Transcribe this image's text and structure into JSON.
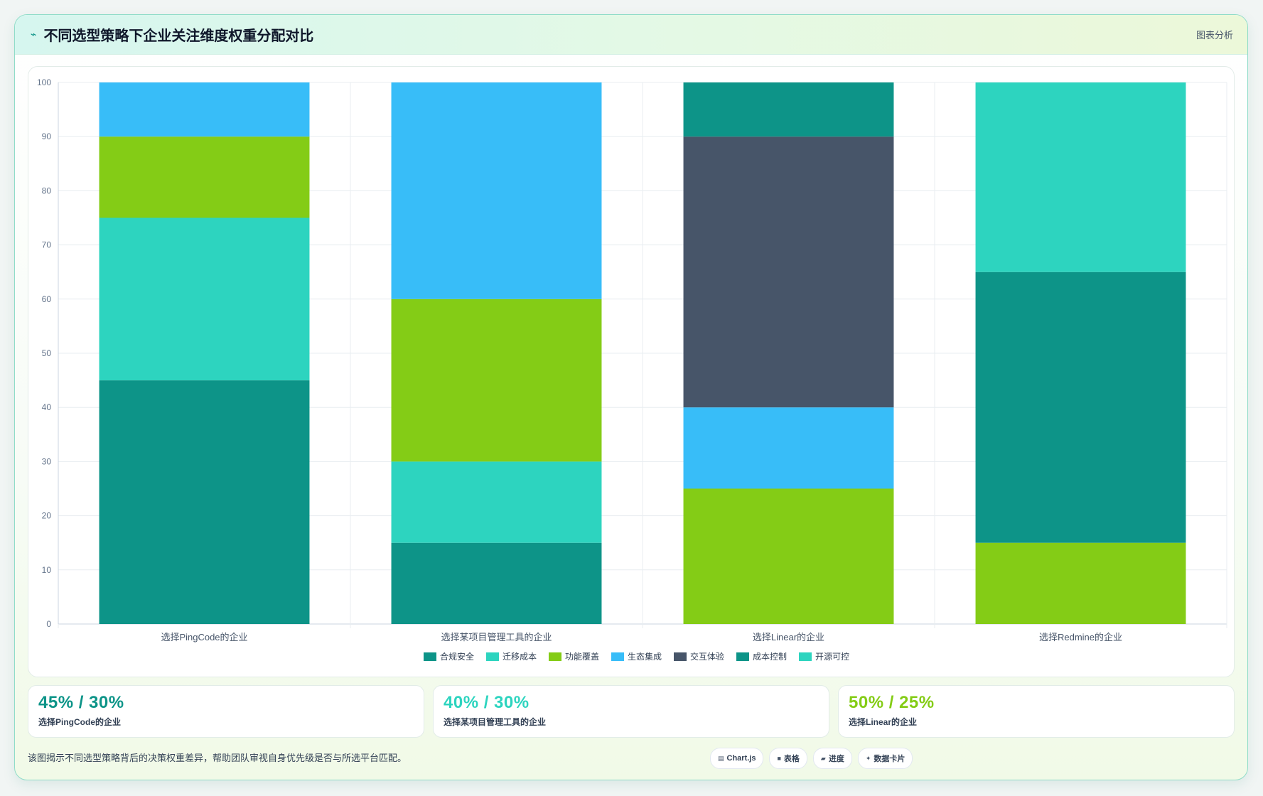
{
  "header": {
    "icon": "pulse-icon",
    "title": "不同选型策略下企业关注维度权重分配对比",
    "action": "图表分析"
  },
  "chart_data": {
    "type": "bar",
    "stacked": true,
    "title": "",
    "xlabel": "",
    "ylabel": "",
    "ylim": [
      0,
      100
    ],
    "yticks": [
      0,
      10,
      20,
      30,
      40,
      50,
      60,
      70,
      80,
      90,
      100
    ],
    "grid": true,
    "legend_position": "bottom",
    "categories": [
      "选择PingCode的企业",
      "选择某项目管理工具的企业",
      "选择Linear的企业",
      "选择Redmine的企业"
    ],
    "series": [
      {
        "name": "合规安全",
        "color": "#0d9488",
        "values": [
          45,
          15,
          0,
          0
        ]
      },
      {
        "name": "迁移成本",
        "color": "#2dd4bf",
        "values": [
          30,
          15,
          0,
          0
        ]
      },
      {
        "name": "功能覆盖",
        "color": "#84cc16",
        "values": [
          15,
          30,
          25,
          15
        ]
      },
      {
        "name": "生态集成",
        "color": "#38bdf8",
        "values": [
          10,
          40,
          15,
          0
        ]
      },
      {
        "name": "交互体验",
        "color": "#475569",
        "values": [
          0,
          0,
          50,
          0
        ]
      },
      {
        "name": "成本控制",
        "color": "#0d9488",
        "values": [
          0,
          0,
          10,
          50
        ]
      },
      {
        "name": "开源可控",
        "color": "#2dd4bf",
        "values": [
          0,
          0,
          0,
          35
        ]
      }
    ]
  },
  "stats": [
    {
      "value": "45% / 30%",
      "label": "选择PingCode的企业",
      "color": "#0d9488"
    },
    {
      "value": "40% / 30%",
      "label": "选择某项目管理工具的企业",
      "color": "#2dd4bf"
    },
    {
      "value": "50% / 25%",
      "label": "选择Linear的企业",
      "color": "#84cc16"
    }
  ],
  "footer": {
    "description": "该图揭示不同选型策略背后的决策权重差异，帮助团队审视自身优先级是否与所选平台匹配。",
    "tags": [
      {
        "icon": "chart-icon",
        "label": "Chart.js"
      },
      {
        "icon": "table-icon",
        "label": "表格"
      },
      {
        "icon": "progress-icon",
        "label": "进度"
      },
      {
        "icon": "card-icon",
        "label": "数据卡片"
      }
    ]
  }
}
